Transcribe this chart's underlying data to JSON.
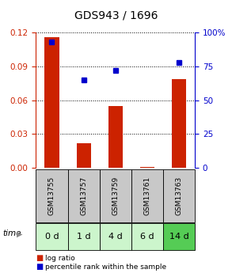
{
  "title": "GDS943 / 1696",
  "categories": [
    "GSM13755",
    "GSM13757",
    "GSM13759",
    "GSM13761",
    "GSM13763"
  ],
  "time_labels": [
    "0 d",
    "1 d",
    "4 d",
    "6 d",
    "14 d"
  ],
  "log_ratio": [
    0.116,
    0.022,
    0.055,
    0.001,
    0.079
  ],
  "percentile_rank": [
    93,
    65,
    72,
    0,
    78
  ],
  "bar_color": "#cc2200",
  "dot_color": "#0000cc",
  "left_ylim": [
    0,
    0.12
  ],
  "right_ylim": [
    0,
    100
  ],
  "left_yticks": [
    0,
    0.03,
    0.06,
    0.09,
    0.12
  ],
  "right_yticks": [
    0,
    25,
    50,
    75,
    100
  ],
  "right_yticklabels": [
    "0",
    "25",
    "50",
    "75",
    "100%"
  ],
  "gray_box_color": "#c8c8c8",
  "green_box_color_light": "#ccf5cc",
  "green_box_color_dark": "#66dd66",
  "green_box_colors": [
    "#ccf5cc",
    "#ccf5cc",
    "#ccf5cc",
    "#ccf5cc",
    "#55cc55"
  ],
  "background_color": "#ffffff",
  "title_fontsize": 10,
  "tick_fontsize": 7.5,
  "gsm_fontsize": 6.5,
  "time_fontsize": 8
}
